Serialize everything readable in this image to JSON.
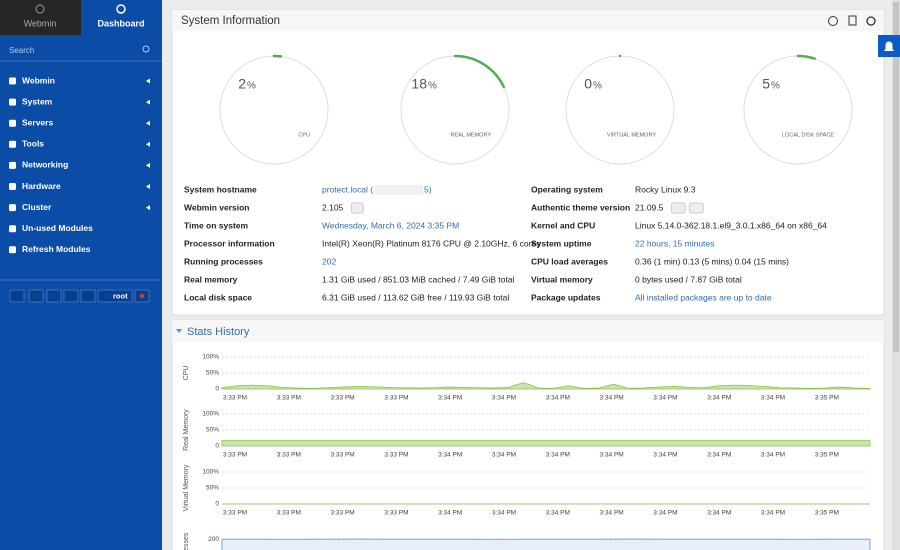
{
  "sidebar": {
    "tabs": [
      "Webmin",
      "Dashboard"
    ],
    "search_placeholder": "Search",
    "menu": [
      "Webmin",
      "System",
      "Servers",
      "Tools",
      "Networking",
      "Hardware",
      "Cluster",
      "Un-used Modules",
      "Refresh Modules"
    ],
    "user": "root"
  },
  "system_information": {
    "title": "System Information",
    "gauges": [
      {
        "value": 2,
        "unit": "%",
        "label": "CPU"
      },
      {
        "value": 18,
        "unit": "%",
        "label": "REAL MEMORY"
      },
      {
        "value": 0,
        "unit": "%",
        "label": "VIRTUAL MEMORY"
      },
      {
        "value": 5,
        "unit": "%",
        "label": "LOCAL DISK SPACE"
      }
    ],
    "left": [
      {
        "label": "System hostname",
        "value": "protect.local (",
        "value_suffix": "5)",
        "link": true
      },
      {
        "label": "Webmin version",
        "value": "2.105"
      },
      {
        "label": "Time on system",
        "value": "Wednesday, March 6, 2024 3:35 PM",
        "link": true
      },
      {
        "label": "Processor information",
        "value": "Intel(R) Xeon(R) Platinum 8176 CPU @ 2.10GHz, 6 cores"
      },
      {
        "label": "Running processes",
        "value": "202",
        "link": true
      },
      {
        "label": "Real memory",
        "value": "1.31 GiB used / 851.03 MiB cached / 7.49 GiB total"
      },
      {
        "label": "Local disk space",
        "value": "6.31 GiB used / 113.62 GiB free / 119.93 GiB total"
      }
    ],
    "right": [
      {
        "label": "Operating system",
        "value": "Rocky Linux 9.3"
      },
      {
        "label": "Authentic theme version",
        "value": "21.09.5"
      },
      {
        "label": "Kernel and CPU",
        "value": "Linux 5.14.0-362.18.1.el9_3.0.1.x86_64 on x86_64"
      },
      {
        "label": "System uptime",
        "value": "22 hours, 15 minutes",
        "link": true
      },
      {
        "label": "CPU load averages",
        "value": "0.36 (1 min) 0.13 (5 mins) 0.04 (15 mins)"
      },
      {
        "label": "Virtual memory",
        "value": "0 bytes used / 7.87 GiB total"
      },
      {
        "label": "Package updates",
        "value": "All installed packages are up to date",
        "link": true
      }
    ]
  },
  "stats_history": {
    "title": "Stats History",
    "time_labels": [
      "3:33 PM",
      "3:33 PM",
      "3:33 PM",
      "3:33 PM",
      "3:34 PM",
      "3:34 PM",
      "3:34 PM",
      "3:34 PM",
      "3:34 PM",
      "3:34 PM",
      "3:34 PM",
      "3:35 PM"
    ],
    "charts": [
      {
        "label": "CPU",
        "ylim": [
          0,
          100
        ],
        "yticks": [
          {
            "value": 100,
            "label": "100%"
          },
          {
            "value": 50,
            "label": "50%"
          },
          0
        ],
        "color": "#8bc34a",
        "values": [
          4,
          10,
          12,
          10,
          5,
          3,
          2,
          4,
          6,
          8,
          7,
          5,
          4,
          3,
          4,
          6,
          5,
          4,
          3,
          5,
          20,
          3,
          2,
          10,
          2,
          3,
          15,
          2,
          3,
          6,
          8,
          5,
          4,
          10,
          12,
          11,
          8,
          4,
          3,
          2,
          3,
          6,
          3,
          2
        ]
      },
      {
        "label": "Real Memory",
        "ylim": [
          0,
          100
        ],
        "yticks": [
          {
            "value": 100,
            "label": "100%"
          },
          {
            "value": 50,
            "label": "50%"
          },
          0
        ],
        "color": "#8bc34a",
        "values": [
          18,
          18,
          18,
          18,
          18,
          18,
          18,
          18,
          18,
          18,
          18,
          18,
          18,
          18,
          18,
          18,
          18,
          18,
          18,
          18
        ]
      },
      {
        "label": "Virtual Memory",
        "ylim": [
          0,
          100
        ],
        "yticks": [
          {
            "value": 100,
            "label": "100%"
          },
          {
            "value": 50,
            "label": "50%"
          },
          0
        ],
        "color": "#8bc34a",
        "values": [
          0,
          0,
          0,
          0,
          0,
          0,
          0,
          0,
          0,
          0,
          0,
          0,
          0,
          0,
          0,
          0,
          0,
          0,
          0,
          0
        ]
      },
      {
        "label": "Processes",
        "ylim": [
          0,
          250
        ],
        "yticks": [
          200
        ],
        "color": "#5b8fd6",
        "values": [
          202,
          202,
          201,
          202,
          203,
          202,
          202,
          202,
          201,
          202,
          202,
          202,
          203,
          202,
          202,
          202,
          202,
          201,
          202,
          202
        ]
      }
    ]
  }
}
